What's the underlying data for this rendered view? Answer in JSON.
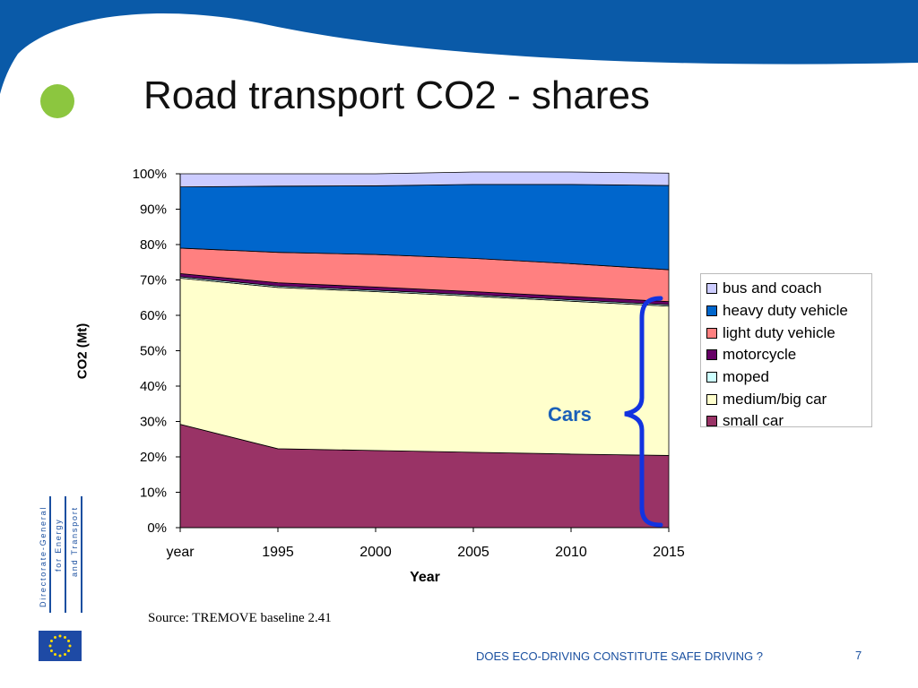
{
  "slide": {
    "title": "Road transport CO2 - shares",
    "source": "Source: TREMOVE baseline 2.41",
    "footer": "DOES ECO-DRIVING CONSTITUTE SAFE DRIVING ?",
    "page_number": "7",
    "logo_lines": [
      "Directorate-General",
      "for Energy",
      "and Transport"
    ],
    "annotation": "Cars",
    "colors": {
      "banner": "#0a5aa8",
      "bullet": "#8cc63f",
      "accent_text": "#1a60b8",
      "brace": "#1233e0"
    }
  },
  "chart_data": {
    "type": "area",
    "stacked": true,
    "percent": true,
    "categories": [
      "year",
      "1995",
      "2000",
      "2005",
      "2010",
      "2015"
    ],
    "xlabel": "Year",
    "ylabel": "CO2 (Mt)",
    "ylim": [
      0,
      100
    ],
    "yticks": [
      "0%",
      "10%",
      "20%",
      "30%",
      "40%",
      "50%",
      "60%",
      "70%",
      "80%",
      "90%",
      "100%"
    ],
    "legend_position": "right",
    "series": [
      {
        "name": "small car",
        "color": "#993366",
        "values": [
          29.2,
          22.3,
          21.8,
          21.3,
          20.8,
          20.4
        ]
      },
      {
        "name": "medium/big car",
        "color": "#ffffcc",
        "values": [
          41.3,
          45.6,
          44.9,
          44.1,
          43.2,
          42.2
        ]
      },
      {
        "name": "moped",
        "color": "#ccffff",
        "values": [
          0.4,
          0.4,
          0.4,
          0.4,
          0.4,
          0.4
        ]
      },
      {
        "name": "motorcycle",
        "color": "#660066",
        "values": [
          0.9,
          0.9,
          0.9,
          0.9,
          0.9,
          0.9
        ]
      },
      {
        "name": "light duty vehicle",
        "color": "#ff8080",
        "values": [
          7.2,
          8.6,
          9.2,
          9.4,
          9.3,
          9.0
        ]
      },
      {
        "name": "heavy duty vehicle",
        "color": "#0066cc",
        "values": [
          17.3,
          18.7,
          19.4,
          20.9,
          22.4,
          23.8
        ]
      },
      {
        "name": "bus and coach",
        "color": "#ccccff",
        "values": [
          3.7,
          3.5,
          3.4,
          3.5,
          3.5,
          3.5
        ]
      }
    ]
  }
}
